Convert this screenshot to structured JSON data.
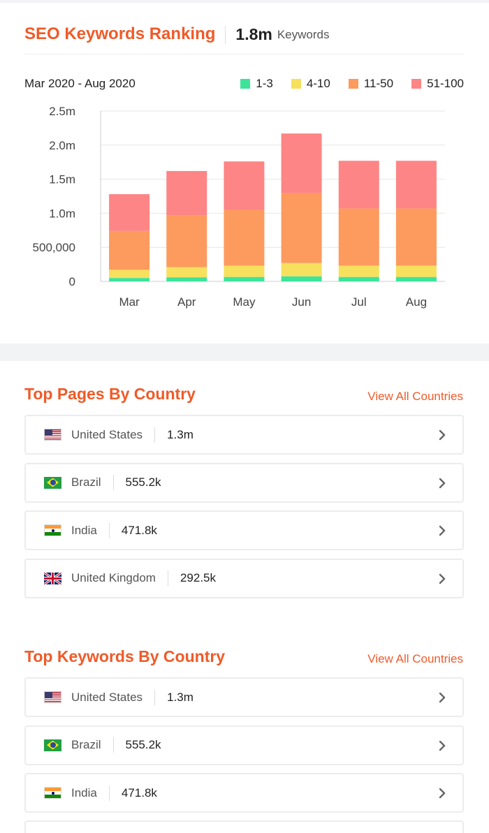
{
  "seo": {
    "title": "SEO Keywords Ranking",
    "count": "1.8m",
    "count_label": "Keywords",
    "date_range": "Mar 2020 - Aug 2020"
  },
  "colors": {
    "accent": "#f05a28",
    "r1_3": "#3ee39a",
    "r4_10": "#f6e05e",
    "r11_50": "#fd9a5e",
    "r51_100": "#fd8585"
  },
  "chart_data": {
    "type": "bar",
    "stacked": true,
    "categories": [
      "Mar",
      "Apr",
      "May",
      "Jun",
      "Jul",
      "Aug"
    ],
    "series": [
      {
        "name": "1-3",
        "values": [
          50000,
          60000,
          65000,
          75000,
          65000,
          65000
        ]
      },
      {
        "name": "4-10",
        "values": [
          120000,
          150000,
          165000,
          195000,
          165000,
          165000
        ]
      },
      {
        "name": "11-50",
        "values": [
          570000,
          760000,
          820000,
          1025000,
          840000,
          840000
        ]
      },
      {
        "name": "51-100",
        "values": [
          540000,
          650000,
          710000,
          875000,
          700000,
          700000
        ]
      }
    ],
    "ylim": [
      0,
      2500000
    ],
    "yticks": [
      {
        "value": 0,
        "label": "0"
      },
      {
        "value": 500000,
        "label": "500,000"
      },
      {
        "value": 1000000,
        "label": "1.0m"
      },
      {
        "value": 1500000,
        "label": "1.5m"
      },
      {
        "value": 2000000,
        "label": "2.0m"
      },
      {
        "value": 2500000,
        "label": "2.5m"
      }
    ],
    "grid": true,
    "legend": "top-right"
  },
  "pages": {
    "title": "Top Pages By Country",
    "view_all": "View All Countries",
    "rows": [
      {
        "flag": "us",
        "name": "United States",
        "value": "1.3m"
      },
      {
        "flag": "br",
        "name": "Brazil",
        "value": "555.2k"
      },
      {
        "flag": "in",
        "name": "India",
        "value": "471.8k"
      },
      {
        "flag": "uk",
        "name": "United Kingdom",
        "value": "292.5k"
      }
    ]
  },
  "keywords": {
    "title": "Top Keywords By Country",
    "view_all": "View All Countries",
    "rows": [
      {
        "flag": "us",
        "name": "United States",
        "value": "1.3m"
      },
      {
        "flag": "br",
        "name": "Brazil",
        "value": "555.2k"
      },
      {
        "flag": "in",
        "name": "India",
        "value": "471.8k"
      }
    ]
  },
  "icons": {
    "row_arrow": "chevron-right-icon"
  }
}
